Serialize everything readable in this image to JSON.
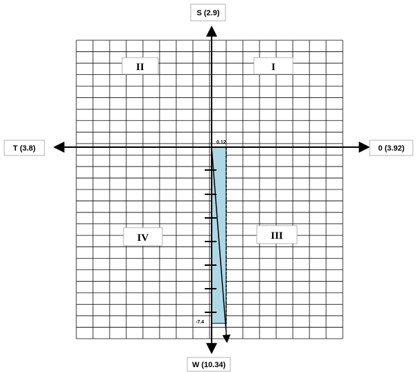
{
  "axes": {
    "top": "S (2.9)",
    "bottom": "W (10.34)",
    "left": "T (3.8)",
    "right": "0 (3.92)"
  },
  "quadrants": {
    "q1": "I",
    "q2": "II",
    "q3": "III",
    "q4": "IV"
  },
  "markers": {
    "top_value": "0.12",
    "bottom_value": "-7.4"
  },
  "colors": {
    "shaded_region": "#add8e6"
  }
}
